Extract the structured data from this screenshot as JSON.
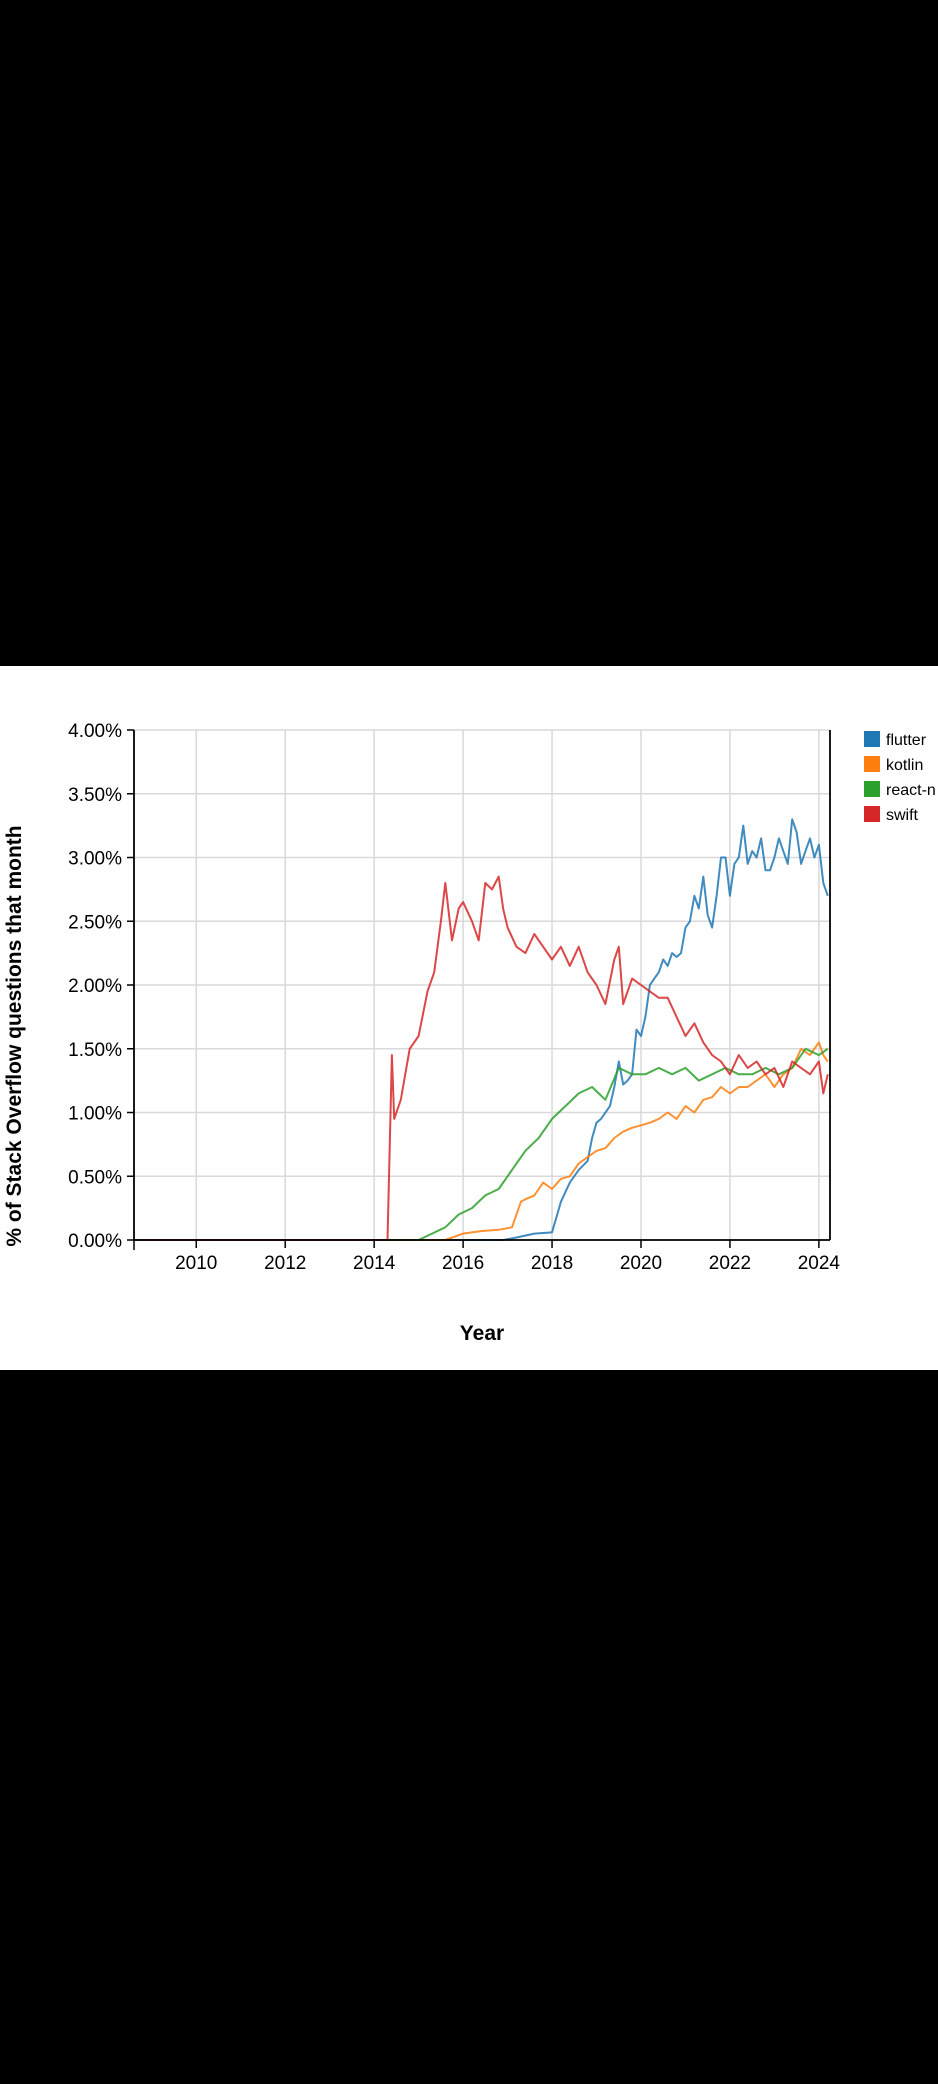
{
  "chart_data": {
    "type": "line",
    "xlabel": "Year",
    "ylabel": "% of Stack Overflow questions that month",
    "xlim": [
      2008.6,
      2024.25
    ],
    "ylim": [
      0,
      4
    ],
    "x_ticks": [
      2010,
      2012,
      2014,
      2016,
      2018,
      2020,
      2022,
      2024
    ],
    "x_tick_labels": [
      "2010",
      "2012",
      "2014",
      "2016",
      "2018",
      "2020",
      "2022",
      "2024"
    ],
    "y_ticks": [
      0,
      0.5,
      1,
      1.5,
      2,
      2.5,
      3,
      3.5,
      4
    ],
    "y_tick_labels": [
      "0.00%",
      "0.50%",
      "1.00%",
      "1.50%",
      "2.00%",
      "2.50%",
      "3.00%",
      "3.50%",
      "4.00%"
    ],
    "grid": true,
    "legend_placement": "top-right",
    "legend": [
      "flutter",
      "kotlin",
      "react-n",
      "swift"
    ],
    "series": [
      {
        "name": "flutter",
        "color": "#1f77b4",
        "x": [
          2008.6,
          2016.9,
          2017.2,
          2017.6,
          2018.0,
          2018.1,
          2018.2,
          2018.4,
          2018.6,
          2018.8,
          2018.9,
          2019.0,
          2019.1,
          2019.3,
          2019.4,
          2019.5,
          2019.6,
          2019.7,
          2019.8,
          2019.9,
          2020.0,
          2020.1,
          2020.2,
          2020.3,
          2020.4,
          2020.5,
          2020.6,
          2020.7,
          2020.8,
          2020.9,
          2021.0,
          2021.1,
          2021.2,
          2021.3,
          2021.4,
          2021.5,
          2021.6,
          2021.7,
          2021.8,
          2021.9,
          2022.0,
          2022.1,
          2022.2,
          2022.3,
          2022.4,
          2022.5,
          2022.6,
          2022.7,
          2022.8,
          2022.9,
          2023.0,
          2023.1,
          2023.2,
          2023.3,
          2023.4,
          2023.5,
          2023.6,
          2023.7,
          2023.8,
          2023.9,
          2024.0,
          2024.1,
          2024.2
        ],
        "values": [
          0.0,
          0.0,
          0.02,
          0.05,
          0.06,
          0.18,
          0.3,
          0.45,
          0.55,
          0.62,
          0.8,
          0.92,
          0.95,
          1.05,
          1.2,
          1.4,
          1.22,
          1.25,
          1.3,
          1.65,
          1.6,
          1.75,
          2.0,
          2.05,
          2.1,
          2.2,
          2.15,
          2.25,
          2.22,
          2.25,
          2.45,
          2.5,
          2.7,
          2.6,
          2.85,
          2.55,
          2.45,
          2.7,
          3.0,
          3.0,
          2.7,
          2.95,
          3.0,
          3.25,
          2.95,
          3.05,
          3.0,
          3.15,
          2.9,
          2.9,
          3.0,
          3.15,
          3.05,
          2.95,
          3.3,
          3.2,
          2.95,
          3.05,
          3.15,
          3.0,
          3.1,
          2.8,
          2.7
        ]
      },
      {
        "name": "kotlin",
        "color": "#ff7f0e",
        "x": [
          2008.6,
          2015.6,
          2016.0,
          2016.4,
          2016.8,
          2017.1,
          2017.3,
          2017.4,
          2017.6,
          2017.8,
          2018.0,
          2018.2,
          2018.4,
          2018.6,
          2018.8,
          2019.0,
          2019.2,
          2019.4,
          2019.6,
          2019.8,
          2020.0,
          2020.2,
          2020.4,
          2020.6,
          2020.8,
          2021.0,
          2021.2,
          2021.4,
          2021.6,
          2021.8,
          2022.0,
          2022.2,
          2022.4,
          2022.6,
          2022.8,
          2023.0,
          2023.2,
          2023.4,
          2023.6,
          2023.8,
          2024.0,
          2024.1,
          2024.2
        ],
        "values": [
          0.0,
          0.0,
          0.05,
          0.07,
          0.08,
          0.1,
          0.3,
          0.32,
          0.35,
          0.45,
          0.4,
          0.48,
          0.5,
          0.6,
          0.65,
          0.7,
          0.72,
          0.8,
          0.85,
          0.88,
          0.9,
          0.92,
          0.95,
          1.0,
          0.95,
          1.05,
          1.0,
          1.1,
          1.12,
          1.2,
          1.15,
          1.2,
          1.2,
          1.25,
          1.3,
          1.2,
          1.3,
          1.35,
          1.5,
          1.45,
          1.55,
          1.45,
          1.4
        ]
      },
      {
        "name": "react-n",
        "color": "#2ca02c",
        "x": [
          2008.6,
          2015.0,
          2015.3,
          2015.6,
          2015.9,
          2016.2,
          2016.5,
          2016.8,
          2017.1,
          2017.4,
          2017.7,
          2018.0,
          2018.3,
          2018.6,
          2018.9,
          2019.2,
          2019.5,
          2019.8,
          2020.1,
          2020.4,
          2020.7,
          2021.0,
          2021.3,
          2021.6,
          2021.9,
          2022.2,
          2022.5,
          2022.8,
          2023.1,
          2023.4,
          2023.7,
          2024.0,
          2024.2
        ],
        "values": [
          0.0,
          0.0,
          0.05,
          0.1,
          0.2,
          0.25,
          0.35,
          0.4,
          0.55,
          0.7,
          0.8,
          0.95,
          1.05,
          1.15,
          1.2,
          1.1,
          1.35,
          1.3,
          1.3,
          1.35,
          1.3,
          1.35,
          1.25,
          1.3,
          1.35,
          1.3,
          1.3,
          1.35,
          1.3,
          1.35,
          1.5,
          1.45,
          1.5
        ]
      },
      {
        "name": "swift",
        "color": "#d62728",
        "x": [
          2008.6,
          2014.3,
          2014.4,
          2014.45,
          2014.6,
          2014.8,
          2015.0,
          2015.2,
          2015.35,
          2015.5,
          2015.6,
          2015.75,
          2015.9,
          2016.0,
          2016.2,
          2016.35,
          2016.5,
          2016.65,
          2016.8,
          2016.9,
          2017.0,
          2017.2,
          2017.4,
          2017.6,
          2017.8,
          2018.0,
          2018.2,
          2018.4,
          2018.6,
          2018.8,
          2019.0,
          2019.2,
          2019.4,
          2019.5,
          2019.6,
          2019.8,
          2020.0,
          2020.2,
          2020.4,
          2020.6,
          2020.8,
          2021.0,
          2021.2,
          2021.4,
          2021.6,
          2021.8,
          2022.0,
          2022.2,
          2022.4,
          2022.6,
          2022.8,
          2023.0,
          2023.2,
          2023.4,
          2023.6,
          2023.8,
          2024.0,
          2024.1,
          2024.2
        ],
        "values": [
          0.0,
          0.0,
          1.45,
          0.95,
          1.1,
          1.5,
          1.6,
          1.95,
          2.1,
          2.5,
          2.8,
          2.35,
          2.6,
          2.65,
          2.5,
          2.35,
          2.8,
          2.75,
          2.85,
          2.6,
          2.45,
          2.3,
          2.25,
          2.4,
          2.3,
          2.2,
          2.3,
          2.15,
          2.3,
          2.1,
          2.0,
          1.85,
          2.2,
          2.3,
          1.85,
          2.05,
          2.0,
          1.95,
          1.9,
          1.9,
          1.75,
          1.6,
          1.7,
          1.55,
          1.45,
          1.4,
          1.3,
          1.45,
          1.35,
          1.4,
          1.3,
          1.35,
          1.2,
          1.4,
          1.35,
          1.3,
          1.4,
          1.15,
          1.3
        ]
      }
    ]
  }
}
